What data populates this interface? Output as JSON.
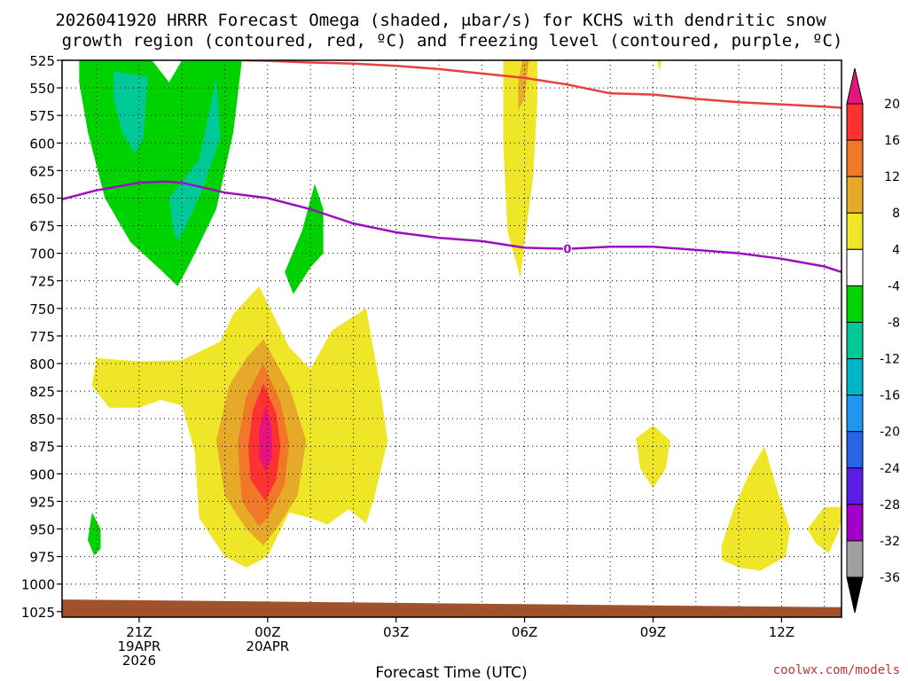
{
  "chart_data": {
    "type": "contour",
    "title_line1": "2026041920 HRRR Forecast Omega (shaded, μbar/s) for KCHS with dendritic snow",
    "title_line2": "growth region (contoured, red, ºC) and freezing level (contoured, purple, ºC)",
    "xlabel": "Forecast Time (UTC)",
    "credit": "coolwx.com/models",
    "x_range_hours": [
      19.2,
      37.4
    ],
    "x_ticks": [
      {
        "hour": 21,
        "lines": [
          "21Z",
          "19APR",
          "2026"
        ]
      },
      {
        "hour": 24,
        "lines": [
          "00Z",
          "20APR"
        ]
      },
      {
        "hour": 27,
        "lines": [
          "03Z"
        ]
      },
      {
        "hour": 30,
        "lines": [
          "06Z"
        ]
      },
      {
        "hour": 33,
        "lines": [
          "09Z"
        ]
      },
      {
        "hour": 36,
        "lines": [
          "12Z"
        ]
      }
    ],
    "y_range_hpa": [
      525,
      1030
    ],
    "y_ticks": [
      525,
      550,
      575,
      600,
      625,
      650,
      675,
      700,
      725,
      750,
      775,
      800,
      825,
      850,
      875,
      900,
      925,
      950,
      975,
      1000,
      1025
    ],
    "grid": true,
    "colorbar": {
      "levels": [
        20,
        16,
        12,
        8,
        4,
        -4,
        -8,
        -12,
        -16,
        -20,
        -24,
        -28,
        -32,
        -36
      ],
      "colors": [
        "#ff3232",
        "#f07828",
        "#e6aa28",
        "#f0e628",
        "#ffffff",
        "#00d200",
        "#00c896",
        "#00b4c8",
        "#1e96f0",
        "#2864e6",
        "#5a1ee6",
        "#a000c8",
        "#a0a0a0"
      ],
      "top_arrow_color": "#e6147d",
      "bottom_arrow_color": "#000000"
    },
    "dendritic_line_red": {
      "color": "#e84040",
      "points": [
        [
          23.4,
          525
        ],
        [
          24.0,
          525.5
        ],
        [
          25.0,
          527
        ],
        [
          26.0,
          528
        ],
        [
          27.0,
          530
        ],
        [
          28.0,
          533
        ],
        [
          29.0,
          537
        ],
        [
          30.0,
          541
        ],
        [
          31.0,
          547
        ],
        [
          32.0,
          555
        ],
        [
          33.0,
          556
        ],
        [
          34.0,
          560
        ],
        [
          35.0,
          563
        ],
        [
          36.0,
          565
        ],
        [
          37.0,
          567
        ],
        [
          37.4,
          568
        ]
      ]
    },
    "freezing_level_purple": {
      "color": "#9a10c0",
      "label": "0",
      "label_at": [
        31.0,
        696
      ],
      "points": [
        [
          19.2,
          651
        ],
        [
          20.0,
          643
        ],
        [
          21.0,
          636
        ],
        [
          21.6,
          635
        ],
        [
          22.0,
          636
        ],
        [
          23.0,
          645
        ],
        [
          24.0,
          650
        ],
        [
          25.0,
          660
        ],
        [
          26.0,
          673
        ],
        [
          27.0,
          681
        ],
        [
          28.0,
          686
        ],
        [
          29.0,
          689
        ],
        [
          30.0,
          695
        ],
        [
          31.0,
          696
        ],
        [
          32.0,
          694
        ],
        [
          33.0,
          694
        ],
        [
          34.0,
          697
        ],
        [
          35.0,
          700
        ],
        [
          36.0,
          705
        ],
        [
          37.0,
          712
        ],
        [
          37.4,
          717
        ]
      ]
    },
    "shaded_regions": [
      {
        "color": "#00d200",
        "points": [
          [
            19.6,
            525
          ],
          [
            21.3,
            525
          ],
          [
            21.7,
            545
          ],
          [
            22.0,
            525
          ],
          [
            23.4,
            525
          ],
          [
            23.2,
            590
          ],
          [
            22.8,
            660
          ],
          [
            22.2,
            708
          ],
          [
            21.9,
            730
          ],
          [
            21.5,
            715
          ],
          [
            20.8,
            690
          ],
          [
            20.2,
            650
          ],
          [
            19.8,
            590
          ],
          [
            19.6,
            545
          ]
        ]
      },
      {
        "color": "#00c896",
        "points": [
          [
            20.4,
            535
          ],
          [
            21.2,
            540
          ],
          [
            21.1,
            595
          ],
          [
            20.9,
            610
          ],
          [
            20.6,
            590
          ],
          [
            20.4,
            560
          ]
        ]
      },
      {
        "color": "#00c896",
        "points": [
          [
            21.7,
            650
          ],
          [
            22.4,
            615
          ],
          [
            22.8,
            540
          ],
          [
            22.9,
            595
          ],
          [
            22.5,
            640
          ],
          [
            22.1,
            675
          ],
          [
            21.9,
            688
          ],
          [
            21.8,
            680
          ]
        ]
      },
      {
        "color": "#00d200",
        "points": [
          [
            25.1,
            637
          ],
          [
            25.3,
            660
          ],
          [
            25.3,
            700
          ],
          [
            25.0,
            713
          ],
          [
            24.6,
            737
          ],
          [
            24.4,
            717
          ],
          [
            24.8,
            680
          ]
        ]
      },
      {
        "color": "#00d200",
        "points": [
          [
            19.9,
            935
          ],
          [
            20.1,
            950
          ],
          [
            20.1,
            968
          ],
          [
            19.95,
            974
          ],
          [
            19.8,
            960
          ]
        ]
      },
      {
        "color": "#f0e628",
        "points": [
          [
            29.5,
            525
          ],
          [
            30.3,
            525
          ],
          [
            30.3,
            560
          ],
          [
            30.2,
            630
          ],
          [
            30.0,
            690
          ],
          [
            29.9,
            722
          ],
          [
            29.6,
            680
          ],
          [
            29.5,
            600
          ]
        ]
      },
      {
        "color": "#e6aa28",
        "points": [
          [
            29.95,
            525
          ],
          [
            30.1,
            525
          ],
          [
            30.0,
            560
          ],
          [
            29.85,
            570
          ],
          [
            29.85,
            545
          ]
        ]
      },
      {
        "color": "#f0e628",
        "points": [
          [
            33.1,
            525
          ],
          [
            33.2,
            525
          ],
          [
            33.15,
            535
          ]
        ]
      },
      {
        "color": "#f0e628",
        "points": [
          [
            19.9,
            820
          ],
          [
            20.0,
            795
          ],
          [
            21.0,
            798
          ],
          [
            22.0,
            797
          ],
          [
            22.9,
            780
          ],
          [
            23.2,
            755
          ],
          [
            23.8,
            730
          ],
          [
            24.5,
            785
          ],
          [
            25.0,
            805
          ],
          [
            25.5,
            770
          ],
          [
            26.3,
            750
          ],
          [
            26.6,
            815
          ],
          [
            26.8,
            870
          ],
          [
            26.5,
            920
          ],
          [
            26.3,
            945
          ],
          [
            25.9,
            932
          ],
          [
            25.4,
            946
          ],
          [
            25.0,
            940
          ],
          [
            24.5,
            935
          ],
          [
            24.0,
            975
          ],
          [
            23.5,
            985
          ],
          [
            23.0,
            975
          ],
          [
            22.4,
            940
          ],
          [
            22.3,
            880
          ],
          [
            22.0,
            838
          ],
          [
            21.5,
            833
          ],
          [
            21.0,
            840
          ],
          [
            20.3,
            840
          ]
        ]
      },
      {
        "color": "#e6aa28",
        "points": [
          [
            23.9,
            778
          ],
          [
            24.5,
            820
          ],
          [
            24.9,
            870
          ],
          [
            24.7,
            920
          ],
          [
            24.2,
            950
          ],
          [
            23.9,
            965
          ],
          [
            23.5,
            950
          ],
          [
            23.0,
            920
          ],
          [
            22.8,
            870
          ],
          [
            23.1,
            820
          ],
          [
            23.5,
            795
          ]
        ]
      },
      {
        "color": "#f07828",
        "points": [
          [
            23.9,
            800
          ],
          [
            24.3,
            835
          ],
          [
            24.5,
            872
          ],
          [
            24.4,
            910
          ],
          [
            24.0,
            940
          ],
          [
            23.8,
            948
          ],
          [
            23.4,
            925
          ],
          [
            23.3,
            872
          ],
          [
            23.5,
            830
          ]
        ]
      },
      {
        "color": "#ff3232",
        "points": [
          [
            23.9,
            818
          ],
          [
            24.2,
            845
          ],
          [
            24.3,
            875
          ],
          [
            24.2,
            905
          ],
          [
            23.95,
            925
          ],
          [
            23.6,
            905
          ],
          [
            23.55,
            875
          ],
          [
            23.65,
            843
          ]
        ]
      },
      {
        "color": "#e6147d",
        "points": [
          [
            23.95,
            838
          ],
          [
            24.1,
            860
          ],
          [
            24.1,
            885
          ],
          [
            23.95,
            898
          ],
          [
            23.8,
            885
          ],
          [
            23.8,
            860
          ]
        ]
      },
      {
        "color": "#f0e628",
        "points": [
          [
            32.6,
            868
          ],
          [
            33.0,
            856
          ],
          [
            33.4,
            870
          ],
          [
            33.3,
            895
          ],
          [
            33.0,
            913
          ],
          [
            32.7,
            895
          ]
        ]
      },
      {
        "color": "#f0e628",
        "points": [
          [
            34.6,
            965
          ],
          [
            34.9,
            930
          ],
          [
            35.3,
            895
          ],
          [
            35.6,
            875
          ],
          [
            35.9,
            915
          ],
          [
            36.2,
            950
          ],
          [
            36.1,
            975
          ],
          [
            35.5,
            988
          ],
          [
            35.0,
            985
          ],
          [
            34.6,
            978
          ]
        ]
      },
      {
        "color": "#f0e628",
        "points": [
          [
            36.6,
            950
          ],
          [
            37.0,
            930
          ],
          [
            37.5,
            930
          ],
          [
            37.3,
            955
          ],
          [
            37.1,
            972
          ],
          [
            36.8,
            963
          ]
        ]
      }
    ],
    "ground": {
      "color": "#a0522d",
      "top_left_hpa": 1014,
      "top_right_hpa": 1021
    }
  }
}
